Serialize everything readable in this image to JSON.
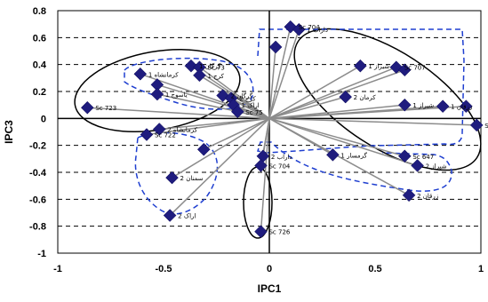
{
  "chart_data": {
    "type": "scatter",
    "title": "",
    "xlabel": "IPC1",
    "ylabel": "IPC3",
    "xlim": [
      -1,
      1
    ],
    "ylim": [
      -1,
      0.8
    ],
    "x_ticks": [
      "-1",
      "-0.5",
      "0",
      "0.5",
      "1"
    ],
    "y_ticks": [
      "0.8",
      "0.6",
      "0.4",
      "0.2",
      "0",
      "-0.2",
      "-0.4",
      "-0.6",
      "-0.8",
      "-1"
    ],
    "grid": "horizontal-dashed",
    "marker_color": "#1F1C7E",
    "vector_color": "#8C8C8C",
    "ellipse_color": "#000000",
    "group_outline_color": "#1F3FD0",
    "points": [
      {
        "x": -0.86,
        "y": 0.08,
        "label": "Sc 723"
      },
      {
        "x": -0.58,
        "y": -0.12,
        "label": "Sc 722"
      },
      {
        "x": -0.61,
        "y": 0.33,
        "label": "1 کرمانشاه"
      },
      {
        "x": -0.53,
        "y": 0.25,
        "label": ""
      },
      {
        "x": -0.53,
        "y": 0.18,
        "label": "1 یاسوج"
      },
      {
        "x": -0.52,
        "y": -0.08,
        "label": "2 کرمانشاه"
      },
      {
        "x": -0.46,
        "y": -0.44,
        "label": "2 سمنان"
      },
      {
        "x": -0.47,
        "y": -0.72,
        "label": "2 اراک"
      },
      {
        "x": -0.37,
        "y": 0.39,
        "label": "1 گرگان"
      },
      {
        "x": -0.33,
        "y": 0.38,
        "label": "Sc 73"
      },
      {
        "x": -0.33,
        "y": 0.32,
        "label": "1 کرج"
      },
      {
        "x": -0.22,
        "y": 0.17,
        "label": "2 گرگان"
      },
      {
        "x": -0.18,
        "y": 0.15,
        "label": "2 کرج"
      },
      {
        "x": -0.17,
        "y": 0.1,
        "label": "1 اراک"
      },
      {
        "x": -0.15,
        "y": 0.05,
        "label": "Sc 75"
      },
      {
        "x": -0.31,
        "y": -0.23,
        "label": ""
      },
      {
        "x": 0.03,
        "y": 0.53,
        "label": ""
      },
      {
        "x": 0.1,
        "y": 0.68,
        "label": "Sc 704"
      },
      {
        "x": 0.14,
        "y": 0.66,
        "label": "1 داراب"
      },
      {
        "x": -0.03,
        "y": -0.28,
        "label": "2 داراب"
      },
      {
        "x": -0.04,
        "y": -0.35,
        "label": "Sc 704"
      },
      {
        "x": -0.04,
        "y": -0.84,
        "label": "Sc 726"
      },
      {
        "x": 0.36,
        "y": 0.16,
        "label": "2 کرمان"
      },
      {
        "x": 0.43,
        "y": 0.39,
        "label": "1 شیراز"
      },
      {
        "x": 0.6,
        "y": 0.38,
        "label": "Sc 707"
      },
      {
        "x": 0.64,
        "y": 0.36,
        "label": ""
      },
      {
        "x": 0.64,
        "y": 0.1,
        "label": "1 شیراز"
      },
      {
        "x": 0.82,
        "y": 0.09,
        "label": "1 زرقان"
      },
      {
        "x": 0.93,
        "y": 0.09,
        "label": ""
      },
      {
        "x": 0.98,
        "y": -0.05,
        "label": "Sc 70"
      },
      {
        "x": 0.3,
        "y": -0.27,
        "label": "1 گرمسار"
      },
      {
        "x": 0.64,
        "y": -0.28,
        "label": "Sc 647"
      },
      {
        "x": 0.7,
        "y": -0.35,
        "label": "2 شیراز"
      },
      {
        "x": 0.66,
        "y": -0.57,
        "label": "2 زرقان"
      }
    ]
  }
}
